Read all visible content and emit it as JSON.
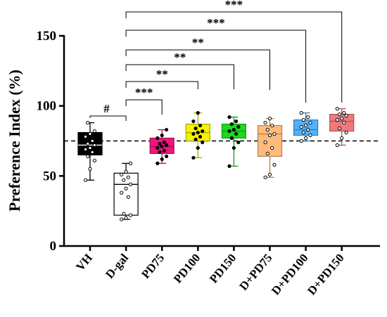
{
  "chart_data": {
    "type": "box",
    "ylabel": "Preference Index (%)",
    "ylim": [
      0,
      150
    ],
    "yticks": [
      0,
      50,
      100,
      150
    ],
    "reference_line": 75,
    "categories": [
      "VH",
      "D-gal",
      "PD75",
      "PD100",
      "PD150",
      "D+PD75",
      "D+PD100",
      "D+PD150"
    ],
    "boxes": [
      {
        "name": "VH",
        "color": "#000000",
        "min": 47,
        "q1": 65,
        "median": 72,
        "q3": 81,
        "max": 88,
        "points": [
          47,
          55,
          61,
          64,
          67,
          69,
          70,
          72,
          73,
          75,
          78,
          80,
          82,
          88
        ]
      },
      {
        "name": "D-gal",
        "color": "#ffffff",
        "min": 19,
        "q1": 22,
        "median": 44,
        "q3": 52,
        "max": 59,
        "points": [
          19,
          20,
          22,
          23,
          35,
          38,
          41,
          44,
          47,
          49,
          51,
          53,
          59
        ]
      },
      {
        "name": "PD75",
        "color": "#f0157c",
        "min": 59,
        "q1": 66,
        "median": 71,
        "q3": 77,
        "max": 83,
        "points": [
          59,
          62,
          64,
          67,
          68,
          70,
          71,
          72,
          73,
          74,
          77,
          79,
          83
        ]
      },
      {
        "name": "PD100",
        "color": "#f5f200",
        "min": 63,
        "q1": 75,
        "median": 81,
        "q3": 87,
        "max": 95,
        "points": [
          63,
          70,
          74,
          76,
          78,
          80,
          81,
          82,
          84,
          86,
          89,
          95
        ]
      },
      {
        "name": "PD150",
        "color": "#1cdb1c",
        "min": 57,
        "q1": 77,
        "median": 82,
        "q3": 87,
        "max": 92,
        "points": [
          57,
          70,
          74,
          77,
          80,
          82,
          83,
          85,
          87,
          89,
          92
        ]
      },
      {
        "name": "D+PD75",
        "color": "#ffbb7a",
        "min": 49,
        "q1": 64,
        "median": 80,
        "q3": 86,
        "max": 91,
        "points": [
          49,
          51,
          58,
          66,
          70,
          74,
          79,
          80,
          83,
          86,
          88,
          91
        ]
      },
      {
        "name": "D+PD100",
        "color": "#4fb3ff",
        "min": 75,
        "q1": 79,
        "median": 83,
        "q3": 90,
        "max": 95,
        "points": [
          75,
          77,
          79,
          81,
          83,
          85,
          86,
          88,
          90,
          92,
          95
        ]
      },
      {
        "name": "D+PD150",
        "color": "#f07a7a",
        "min": 72,
        "q1": 82,
        "median": 89,
        "q3": 94,
        "max": 98,
        "points": [
          72,
          77,
          81,
          84,
          88,
          90,
          91,
          93,
          94,
          95,
          98
        ]
      }
    ],
    "significance": [
      {
        "from": "VH",
        "to": "D-gal",
        "label": "#"
      },
      {
        "from": "D-gal",
        "to": "PD75",
        "label": "***"
      },
      {
        "from": "D-gal",
        "to": "PD100",
        "label": "**"
      },
      {
        "from": "D-gal",
        "to": "PD150",
        "label": "**"
      },
      {
        "from": "D-gal",
        "to": "D+PD75",
        "label": "**"
      },
      {
        "from": "D-gal",
        "to": "D+PD100",
        "label": "***"
      },
      {
        "from": "D-gal",
        "to": "D+PD150",
        "label": "***"
      }
    ]
  }
}
